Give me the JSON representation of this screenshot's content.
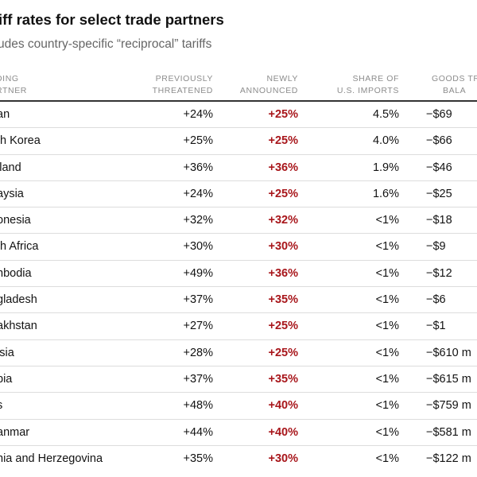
{
  "title": "iff rates for select trade partners",
  "subtitle": "udes country-specific “reciprocal” tariffs",
  "columns": {
    "partner": [
      "DING",
      "RTNER"
    ],
    "previous": [
      "PREVIOUSLY",
      "THREATENED"
    ],
    "new": [
      "NEWLY",
      "ANNOUNCED"
    ],
    "share": [
      "SHARE OF",
      "U.S. IMPORTS"
    ],
    "balance": [
      "GOODS TRA",
      "BALA"
    ]
  },
  "colors": {
    "new_rate": "#a8161b",
    "header_text": "#8c8c8c",
    "subtitle": "#666666",
    "row_divider": "#dddddd"
  },
  "rows": [
    {
      "partner": "an",
      "previous": "+24%",
      "new": "+25%",
      "share": "4.5%",
      "balance": "−$69"
    },
    {
      "partner": "th Korea",
      "previous": "+25%",
      "new": "+25%",
      "share": "4.0%",
      "balance": "−$66"
    },
    {
      "partner": "iland",
      "previous": "+36%",
      "new": "+36%",
      "share": "1.9%",
      "balance": "−$46"
    },
    {
      "partner": "aysia",
      "previous": "+24%",
      "new": "+25%",
      "share": "1.6%",
      "balance": "−$25"
    },
    {
      "partner": "onesia",
      "previous": "+32%",
      "new": "+32%",
      "share": "<1%",
      "balance": "−$18"
    },
    {
      "partner": "th Africa",
      "previous": "+30%",
      "new": "+30%",
      "share": "<1%",
      "balance": "−$9"
    },
    {
      "partner": "nbodia",
      "previous": "+49%",
      "new": "+36%",
      "share": "<1%",
      "balance": "−$12"
    },
    {
      "partner": "gladesh",
      "previous": "+37%",
      "new": "+35%",
      "share": "<1%",
      "balance": "−$6"
    },
    {
      "partner": "akhstan",
      "previous": "+27%",
      "new": "+25%",
      "share": "<1%",
      "balance": "−$1"
    },
    {
      "partner": "isia",
      "previous": "+28%",
      "new": "+25%",
      "share": "<1%",
      "balance": "−$610 m"
    },
    {
      "partner": "bia",
      "previous": "+37%",
      "new": "+35%",
      "share": "<1%",
      "balance": "−$615 m"
    },
    {
      "partner": "s",
      "previous": "+48%",
      "new": "+40%",
      "share": "<1%",
      "balance": "−$759 m"
    },
    {
      "partner": "anmar",
      "previous": "+44%",
      "new": "+40%",
      "share": "<1%",
      "balance": "−$581 m"
    },
    {
      "partner": "nia and Herzegovina",
      "previous": "+35%",
      "new": "+30%",
      "share": "<1%",
      "balance": "−$122 m"
    }
  ]
}
